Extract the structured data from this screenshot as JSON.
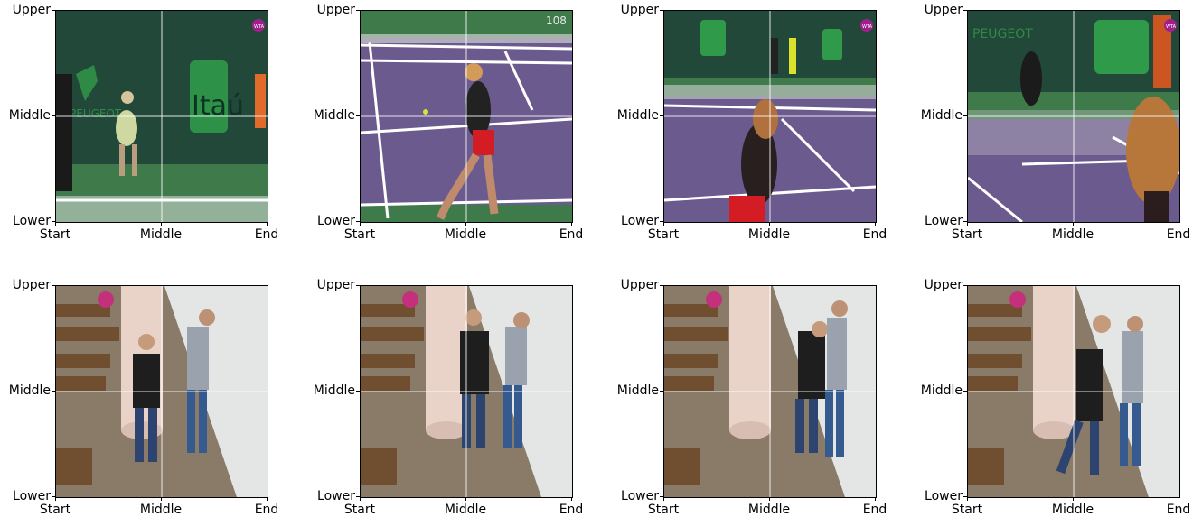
{
  "axes": {
    "y_ticks": [
      "Upper",
      "Middle",
      "Lower"
    ],
    "x_ticks": [
      "Start",
      "Middle",
      "End"
    ]
  },
  "rows": [
    {
      "scene": "tennis",
      "frames": [
        {
          "label": "tennis-frame-1",
          "overlay": "WTA"
        },
        {
          "label": "tennis-frame-2",
          "overlay": "108"
        },
        {
          "label": "tennis-frame-3",
          "overlay": "WTA"
        },
        {
          "label": "tennis-frame-4",
          "overlay": "WTA"
        }
      ],
      "signage": [
        "PEUGEOT",
        "Itaú"
      ]
    },
    {
      "scene": "fight",
      "frames": [
        {
          "label": "fight-frame-1"
        },
        {
          "label": "fight-frame-2"
        },
        {
          "label": "fight-frame-3"
        },
        {
          "label": "fight-frame-4"
        }
      ]
    }
  ],
  "colors": {
    "court_purple": "#6b5a8e",
    "court_green": "#3f7a4b",
    "wall_green": "#22483a",
    "brand_green": "#2f9a4a",
    "floor_wood": "#8a7a68",
    "wall_white": "#e4e6e6",
    "gridline": "#ffffff"
  }
}
